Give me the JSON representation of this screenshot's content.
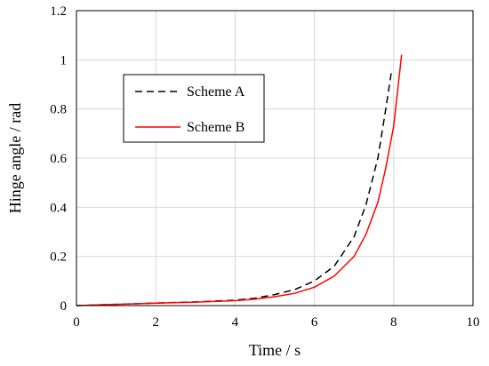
{
  "chart_data": {
    "type": "line",
    "xlabel": "Time / s",
    "ylabel": "Hinge angle / rad",
    "xlim": [
      0,
      10
    ],
    "ylim": [
      0,
      1.2
    ],
    "xticks": [
      "0",
      "2",
      "4",
      "6",
      "8",
      "10"
    ],
    "yticks": [
      "0",
      "0.2",
      "0.4",
      "0.6",
      "0.8",
      "1",
      "1.2"
    ],
    "grid": true,
    "legend_position": "upper-left",
    "series": [
      {
        "name": "Scheme A",
        "color": "#000000",
        "style": "dashed",
        "x": [
          0,
          1,
          2,
          3,
          4,
          4.5,
          5,
          5.5,
          6,
          6.5,
          7,
          7.3,
          7.6,
          7.8,
          7.95
        ],
        "y": [
          0,
          0.005,
          0.01,
          0.015,
          0.022,
          0.03,
          0.045,
          0.065,
          0.1,
          0.16,
          0.28,
          0.41,
          0.6,
          0.8,
          0.96
        ]
      },
      {
        "name": "Scheme B",
        "color": "#ff0000",
        "style": "solid",
        "x": [
          0,
          1,
          2,
          3,
          4,
          4.5,
          5,
          5.5,
          6,
          6.5,
          7,
          7.3,
          7.6,
          7.8,
          8.0,
          8.2
        ],
        "y": [
          0,
          0.005,
          0.01,
          0.014,
          0.02,
          0.026,
          0.036,
          0.05,
          0.075,
          0.12,
          0.2,
          0.29,
          0.42,
          0.56,
          0.73,
          1.02
        ]
      }
    ]
  }
}
